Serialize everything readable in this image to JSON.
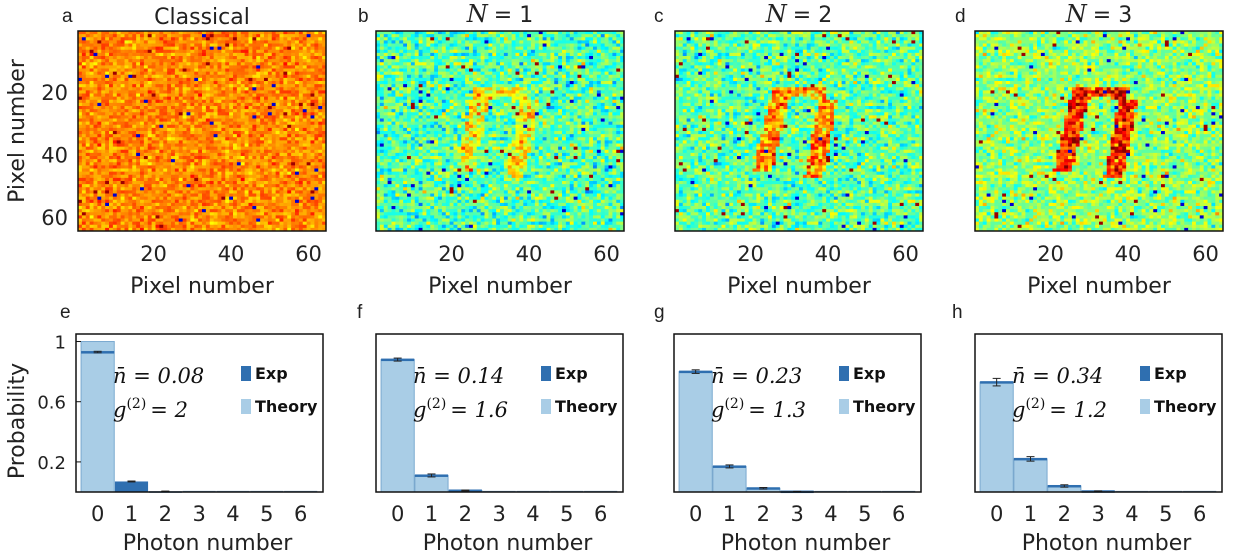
{
  "colors": {
    "exp": "#2f6fb0",
    "theory": "#a9cde6",
    "frame": "#111111",
    "errorbar": "#222222"
  },
  "chart_data": [
    {
      "type": "heatmap",
      "panel": "a",
      "title": "Classical",
      "xlabel": "Pixel number",
      "ylabel": "Pixel number",
      "xticks": [
        "20",
        "40",
        "60"
      ],
      "yticks": [
        "20",
        "40",
        "60"
      ],
      "grid_size": [
        64,
        64
      ],
      "colormap": "jet",
      "pattern": "uniform-warm"
    },
    {
      "type": "heatmap",
      "panel": "b",
      "title_var": "N",
      "title_val": "= 1",
      "xlabel": "Pixel number",
      "xticks": [
        "20",
        "40",
        "60"
      ],
      "grid_size": [
        64,
        64
      ],
      "colormap": "jet",
      "pattern": "faint-object"
    },
    {
      "type": "heatmap",
      "panel": "c",
      "title_var": "N",
      "title_val": "= 2",
      "xlabel": "Pixel number",
      "xticks": [
        "20",
        "40",
        "60"
      ],
      "grid_size": [
        64,
        64
      ],
      "colormap": "jet",
      "pattern": "medium-object"
    },
    {
      "type": "heatmap",
      "panel": "d",
      "title_var": "N",
      "title_val": "= 3",
      "xlabel": "Pixel number",
      "xticks": [
        "20",
        "40",
        "60"
      ],
      "grid_size": [
        64,
        64
      ],
      "colormap": "jet",
      "pattern": "strong-object"
    },
    {
      "type": "bar",
      "panel": "e",
      "xlabel": "Photon number",
      "ylabel": "Probability",
      "categories": [
        "0",
        "1",
        "2",
        "3",
        "4",
        "5",
        "6"
      ],
      "yticks": [
        "1",
        "0.6",
        "0.2"
      ],
      "ylim": [
        0,
        1.05
      ],
      "nbar": "n̄ = 0.08",
      "g2_value": "= 2",
      "series": [
        {
          "name": "Exp",
          "values": [
            0.93,
            0.07,
            0.005,
            0.0,
            0.0,
            0.0,
            0.0
          ],
          "errors": [
            0.005,
            0.003,
            0.001,
            0,
            0,
            0,
            0
          ]
        },
        {
          "name": "Theory",
          "values": [
            1.0,
            0.0,
            0.0,
            0.0,
            0.0,
            0.0,
            0.0
          ]
        }
      ]
    },
    {
      "type": "bar",
      "panel": "f",
      "xlabel": "Photon number",
      "categories": [
        "0",
        "1",
        "2",
        "3",
        "4",
        "5",
        "6"
      ],
      "ylim": [
        0,
        1.05
      ],
      "nbar": "n̄ = 0.14",
      "g2_value": "= 1.6",
      "series": [
        {
          "name": "Exp",
          "values": [
            0.88,
            0.11,
            0.01,
            0.0,
            0.0,
            0.0,
            0.0
          ],
          "errors": [
            0.01,
            0.01,
            0.003,
            0,
            0,
            0,
            0
          ]
        },
        {
          "name": "Theory",
          "values": [
            0.88,
            0.11,
            0.01,
            0.0,
            0.0,
            0.0,
            0.0
          ]
        }
      ]
    },
    {
      "type": "bar",
      "panel": "g",
      "xlabel": "Photon number",
      "categories": [
        "0",
        "1",
        "2",
        "3",
        "4",
        "5",
        "6"
      ],
      "ylim": [
        0,
        1.05
      ],
      "nbar": "n̄ = 0.23",
      "g2_value": "= 1.3",
      "series": [
        {
          "name": "Exp",
          "values": [
            0.8,
            0.17,
            0.025,
            0.003,
            0.0,
            0.0,
            0.0
          ],
          "errors": [
            0.012,
            0.01,
            0.005,
            0.001,
            0,
            0,
            0
          ]
        },
        {
          "name": "Theory",
          "values": [
            0.8,
            0.17,
            0.025,
            0.003,
            0.0,
            0.0,
            0.0
          ]
        }
      ]
    },
    {
      "type": "bar",
      "panel": "h",
      "xlabel": "Photon number",
      "categories": [
        "0",
        "1",
        "2",
        "3",
        "4",
        "5",
        "6"
      ],
      "ylim": [
        0,
        1.05
      ],
      "nbar": "n̄ = 0.34",
      "g2_value": "= 1.2",
      "series": [
        {
          "name": "Exp",
          "values": [
            0.73,
            0.22,
            0.04,
            0.005,
            0.0,
            0.0,
            0.0
          ],
          "errors": [
            0.025,
            0.015,
            0.008,
            0.002,
            0,
            0,
            0
          ]
        },
        {
          "name": "Theory",
          "values": [
            0.73,
            0.22,
            0.04,
            0.005,
            0.0,
            0.0,
            0.0
          ]
        }
      ]
    }
  ]
}
